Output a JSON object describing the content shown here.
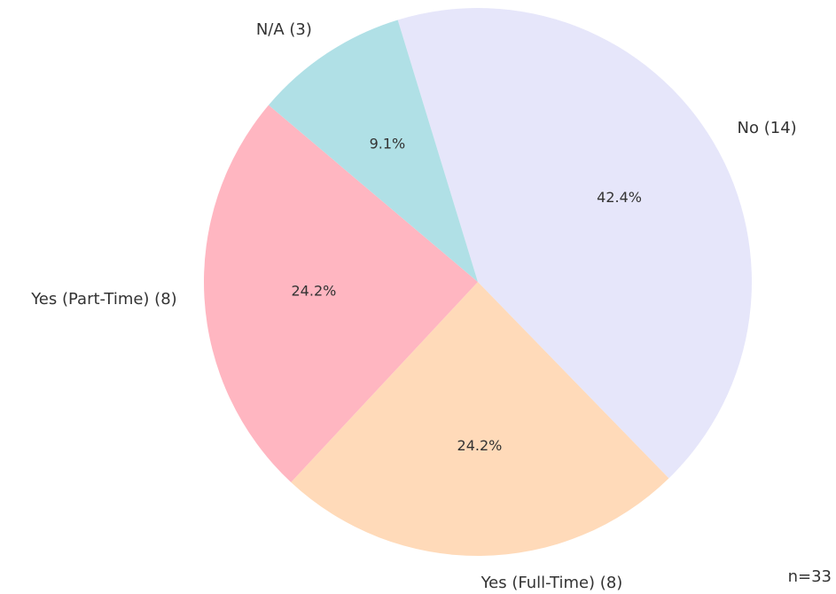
{
  "chart_data": {
    "type": "pie",
    "categories": [
      "No (14)",
      "Yes (Full-Time) (8)",
      "Yes (Part-Time) (8)",
      "N/A (3)"
    ],
    "values": [
      42.4,
      24.2,
      24.2,
      9.1
    ],
    "value_labels": [
      "42.4%",
      "24.2%",
      "24.2%",
      "9.1%"
    ],
    "colors": [
      "#e6e6fa",
      "#ffdab9",
      "#ffb6c1",
      "#b0e0e6"
    ],
    "annotation": "n=33"
  }
}
